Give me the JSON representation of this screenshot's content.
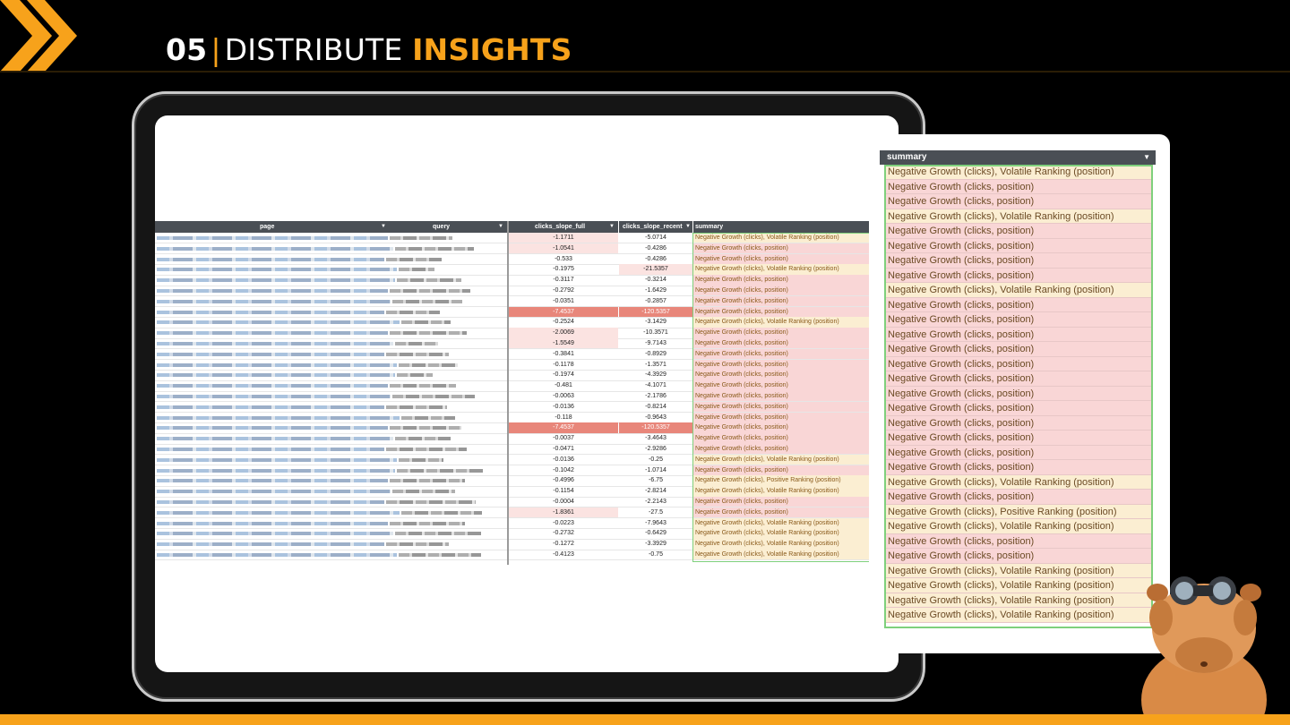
{
  "slide": {
    "number": "05",
    "separator": "|",
    "title_word1": "DISTRIBUTE",
    "title_word2": "INSIGHTS"
  },
  "colors": {
    "accent": "#f7a21b",
    "negative": "#f9d6d6",
    "volatile": "#fbeed2",
    "strong_negative": "#e8867a",
    "light_negative": "#fbe3e1",
    "outline": "#7fd07c"
  },
  "sheet": {
    "columns": [
      "page",
      "query",
      "clicks_slope_full",
      "clicks_slope_recent",
      "summary"
    ],
    "rows": [
      {
        "full": "-1.1711",
        "recent": "-5.0714",
        "summary": "Negative Growth (clicks), Volatile Ranking (position)",
        "type": "volatile",
        "hl_full": "light"
      },
      {
        "full": "-1.0541",
        "recent": "-0.4286",
        "summary": "Negative Growth (clicks, position)",
        "type": "negative",
        "hl_full": "light"
      },
      {
        "full": "-0.533",
        "recent": "-0.4286",
        "summary": "Negative Growth (clicks, position)",
        "type": "negative"
      },
      {
        "full": "-0.1975",
        "recent": "-21.5357",
        "summary": "Negative Growth (clicks), Volatile Ranking (position)",
        "type": "volatile",
        "hl_recent": "light"
      },
      {
        "full": "-0.3117",
        "recent": "-0.3214",
        "summary": "Negative Growth (clicks, position)",
        "type": "negative"
      },
      {
        "full": "-0.2792",
        "recent": "-1.6429",
        "summary": "Negative Growth (clicks, position)",
        "type": "negative"
      },
      {
        "full": "-0.0351",
        "recent": "-0.2857",
        "summary": "Negative Growth (clicks, position)",
        "type": "negative"
      },
      {
        "full": "-7.4537",
        "recent": "-120.5357",
        "summary": "Negative Growth (clicks, position)",
        "type": "negative",
        "hl_full": "strong",
        "hl_recent": "strong"
      },
      {
        "full": "-0.2524",
        "recent": "-3.1429",
        "summary": "Negative Growth (clicks), Volatile Ranking (position)",
        "type": "volatile"
      },
      {
        "full": "-2.0069",
        "recent": "-10.3571",
        "summary": "Negative Growth (clicks, position)",
        "type": "negative",
        "hl_full": "light"
      },
      {
        "full": "-1.5549",
        "recent": "-9.7143",
        "summary": "Negative Growth (clicks, position)",
        "type": "negative",
        "hl_full": "light"
      },
      {
        "full": "-0.3841",
        "recent": "-0.8929",
        "summary": "Negative Growth (clicks, position)",
        "type": "negative"
      },
      {
        "full": "-0.1178",
        "recent": "-1.3571",
        "summary": "Negative Growth (clicks, position)",
        "type": "negative"
      },
      {
        "full": "-0.1974",
        "recent": "-4.3929",
        "summary": "Negative Growth (clicks, position)",
        "type": "negative"
      },
      {
        "full": "-0.481",
        "recent": "-4.1071",
        "summary": "Negative Growth (clicks, position)",
        "type": "negative"
      },
      {
        "full": "-0.0063",
        "recent": "-2.1786",
        "summary": "Negative Growth (clicks, position)",
        "type": "negative"
      },
      {
        "full": "-0.0136",
        "recent": "-0.8214",
        "summary": "Negative Growth (clicks, position)",
        "type": "negative"
      },
      {
        "full": "-0.118",
        "recent": "-0.9643",
        "summary": "Negative Growth (clicks, position)",
        "type": "negative"
      },
      {
        "full": "-7.4537",
        "recent": "-120.5357",
        "summary": "Negative Growth (clicks, position)",
        "type": "negative",
        "hl_full": "strong",
        "hl_recent": "strong"
      },
      {
        "full": "-0.0037",
        "recent": "-3.4643",
        "summary": "Negative Growth (clicks, position)",
        "type": "negative"
      },
      {
        "full": "-0.0471",
        "recent": "-2.9286",
        "summary": "Negative Growth (clicks, position)",
        "type": "negative"
      },
      {
        "full": "-0.0136",
        "recent": "-0.25",
        "summary": "Negative Growth (clicks), Volatile Ranking (position)",
        "type": "volatile"
      },
      {
        "full": "-0.1042",
        "recent": "-1.0714",
        "summary": "Negative Growth (clicks, position)",
        "type": "negative"
      },
      {
        "full": "-0.4996",
        "recent": "-6.75",
        "summary": "Negative Growth (clicks), Positive Ranking (position)",
        "type": "volatile"
      },
      {
        "full": "-0.1154",
        "recent": "-2.8214",
        "summary": "Negative Growth (clicks), Volatile Ranking (position)",
        "type": "volatile"
      },
      {
        "full": "-0.0004",
        "recent": "-2.2143",
        "summary": "Negative Growth (clicks, position)",
        "type": "negative"
      },
      {
        "full": "-1.8361",
        "recent": "-27.5",
        "summary": "Negative Growth (clicks, position)",
        "type": "negative",
        "hl_full": "light"
      },
      {
        "full": "-0.0223",
        "recent": "-7.9643",
        "summary": "Negative Growth (clicks), Volatile Ranking (position)",
        "type": "volatile"
      },
      {
        "full": "-0.2732",
        "recent": "-0.6429",
        "summary": "Negative Growth (clicks), Volatile Ranking (position)",
        "type": "volatile"
      },
      {
        "full": "-0.1272",
        "recent": "-3.3929",
        "summary": "Negative Growth (clicks), Volatile Ranking (position)",
        "type": "volatile"
      },
      {
        "full": "-0.4123",
        "recent": "-0.75",
        "summary": "Negative Growth (clicks), Volatile Ranking (position)",
        "type": "volatile"
      }
    ]
  },
  "zoom": {
    "header": "summary",
    "rows": [
      {
        "text": "Negative Growth (clicks), Volatile Ranking (position)",
        "type": "volatile"
      },
      {
        "text": "Negative Growth (clicks, position)",
        "type": "negative"
      },
      {
        "text": "Negative Growth (clicks, position)",
        "type": "negative"
      },
      {
        "text": "Negative Growth (clicks), Volatile Ranking (position)",
        "type": "volatile"
      },
      {
        "text": "Negative Growth (clicks, position)",
        "type": "negative"
      },
      {
        "text": "Negative Growth (clicks, position)",
        "type": "negative"
      },
      {
        "text": "Negative Growth (clicks, position)",
        "type": "negative"
      },
      {
        "text": "Negative Growth (clicks, position)",
        "type": "negative"
      },
      {
        "text": "Negative Growth (clicks), Volatile Ranking (position)",
        "type": "volatile"
      },
      {
        "text": "Negative Growth (clicks, position)",
        "type": "negative"
      },
      {
        "text": "Negative Growth (clicks, position)",
        "type": "negative"
      },
      {
        "text": "Negative Growth (clicks, position)",
        "type": "negative"
      },
      {
        "text": "Negative Growth (clicks, position)",
        "type": "negative"
      },
      {
        "text": "Negative Growth (clicks, position)",
        "type": "negative"
      },
      {
        "text": "Negative Growth (clicks, position)",
        "type": "negative"
      },
      {
        "text": "Negative Growth (clicks, position)",
        "type": "negative"
      },
      {
        "text": "Negative Growth (clicks, position)",
        "type": "negative"
      },
      {
        "text": "Negative Growth (clicks, position)",
        "type": "negative"
      },
      {
        "text": "Negative Growth (clicks, position)",
        "type": "negative"
      },
      {
        "text": "Negative Growth (clicks, position)",
        "type": "negative"
      },
      {
        "text": "Negative Growth (clicks, position)",
        "type": "negative"
      },
      {
        "text": "Negative Growth (clicks), Volatile Ranking (position)",
        "type": "volatile"
      },
      {
        "text": "Negative Growth (clicks, position)",
        "type": "negative"
      },
      {
        "text": "Negative Growth (clicks), Positive Ranking (position)",
        "type": "volatile"
      },
      {
        "text": "Negative Growth (clicks), Volatile Ranking (position)",
        "type": "volatile"
      },
      {
        "text": "Negative Growth (clicks, position)",
        "type": "negative"
      },
      {
        "text": "Negative Growth (clicks, position)",
        "type": "negative"
      },
      {
        "text": "Negative Growth (clicks), Volatile Ranking (position)",
        "type": "volatile"
      },
      {
        "text": "Negative Growth (clicks), Volatile Ranking (position)",
        "type": "volatile"
      },
      {
        "text": "Negative Growth (clicks), Volatile Ranking (position)",
        "type": "volatile"
      },
      {
        "text": "Negative Growth (clicks), Volatile Ranking (position)",
        "type": "volatile"
      }
    ]
  },
  "mascot": {
    "icon": "capybara-binoculars-icon"
  }
}
